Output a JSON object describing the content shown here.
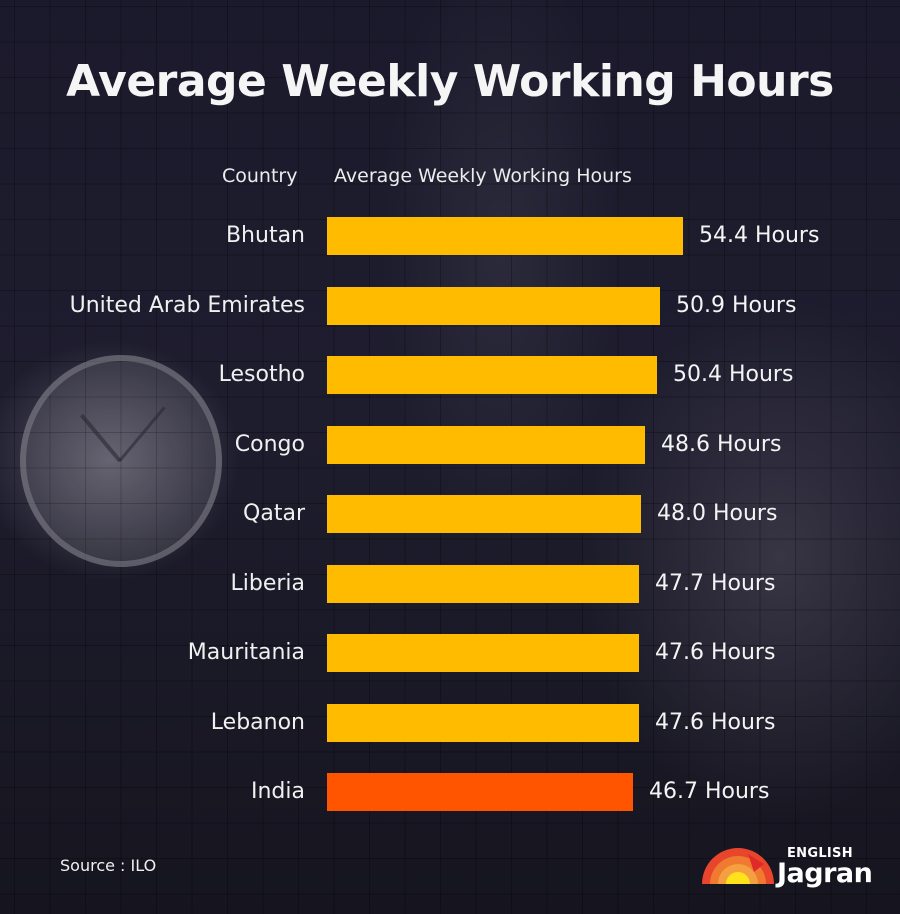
{
  "title": "Average Weekly Working Hours",
  "headers": {
    "country": "Country",
    "hours": "Average Weekly Working Hours"
  },
  "source": "Source : ILO",
  "logo": {
    "top": "ENGLISH",
    "main": "Jagran"
  },
  "colors": {
    "bar": "#ffbb00",
    "highlight": "#ff5500",
    "background": "#1c1b2b",
    "text": "#f2f2f2"
  },
  "rows": [
    {
      "country": "Bhutan",
      "value": 54.4,
      "label": "54.4 Hours",
      "color": "#ffbb00"
    },
    {
      "country": "United Arab Emirates",
      "value": 50.9,
      "label": "50.9 Hours",
      "color": "#ffbb00"
    },
    {
      "country": "Lesotho",
      "value": 50.4,
      "label": "50.4 Hours",
      "color": "#ffbb00"
    },
    {
      "country": "Congo",
      "value": 48.6,
      "label": "48.6 Hours",
      "color": "#ffbb00"
    },
    {
      "country": "Qatar",
      "value": 48.0,
      "label": "48.0 Hours",
      "color": "#ffbb00"
    },
    {
      "country": "Liberia",
      "value": 47.7,
      "label": "47.7 Hours",
      "color": "#ffbb00"
    },
    {
      "country": "Mauritania",
      "value": 47.6,
      "label": "47.6 Hours",
      "color": "#ffbb00"
    },
    {
      "country": "Lebanon",
      "value": 47.6,
      "label": "47.6 Hours",
      "color": "#ffbb00"
    },
    {
      "country": "India",
      "value": 46.7,
      "label": "46.7 Hours",
      "color": "#ff5500"
    }
  ],
  "chart_data": {
    "type": "bar",
    "orientation": "horizontal",
    "title": "Average Weekly Working Hours",
    "xlabel": "Average Weekly Working Hours",
    "ylabel": "Country",
    "categories": [
      "Bhutan",
      "United Arab Emirates",
      "Lesotho",
      "Congo",
      "Qatar",
      "Liberia",
      "Mauritania",
      "Lebanon",
      "India"
    ],
    "values": [
      54.4,
      50.9,
      50.4,
      48.6,
      48.0,
      47.7,
      47.6,
      47.6,
      46.7
    ],
    "units": "Hours",
    "highlight": "India",
    "source": "ILO",
    "grid": false,
    "legend": null
  }
}
